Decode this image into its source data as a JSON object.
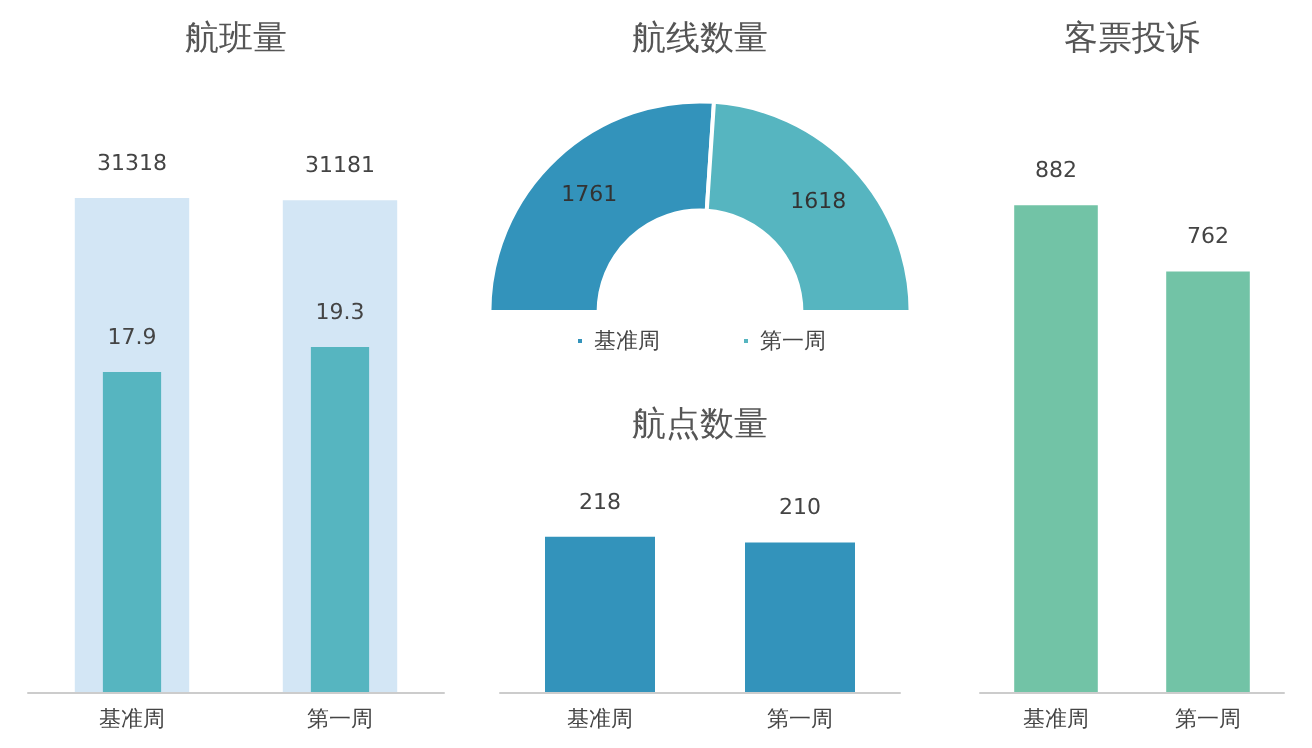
{
  "chart_data": [
    {
      "type": "bar",
      "title": "航班量",
      "categories": [
        "基准周",
        "第一周"
      ],
      "data_labels": true,
      "tick_labels": "x",
      "series": [
        {
          "color": "#d3e6f5",
          "values": [
            31318,
            31181
          ]
        },
        {
          "color": "#56b5c0",
          "values": [
            17.9,
            19.3
          ],
          "axis": "y2"
        }
      ]
    },
    {
      "type": "donut",
      "title": "航线数量",
      "categories": [
        "基准周",
        "第一周"
      ],
      "values": [
        1761,
        1618
      ],
      "colors": [
        "#3393bb",
        "#56b5c0"
      ],
      "data_labels": true,
      "legend": "bottom"
    },
    {
      "type": "bar",
      "title": "航点数量",
      "categories": [
        "基准周",
        "第一周"
      ],
      "values": [
        218,
        210
      ],
      "color": "#3393bb",
      "data_labels": true,
      "tick_labels": "x"
    },
    {
      "type": "bar",
      "title": "客票投诉",
      "categories": [
        "基准周",
        "第一周"
      ],
      "values": [
        882,
        762
      ],
      "color": "#72c3a6",
      "data_labels": true,
      "tick_labels": "x"
    }
  ]
}
